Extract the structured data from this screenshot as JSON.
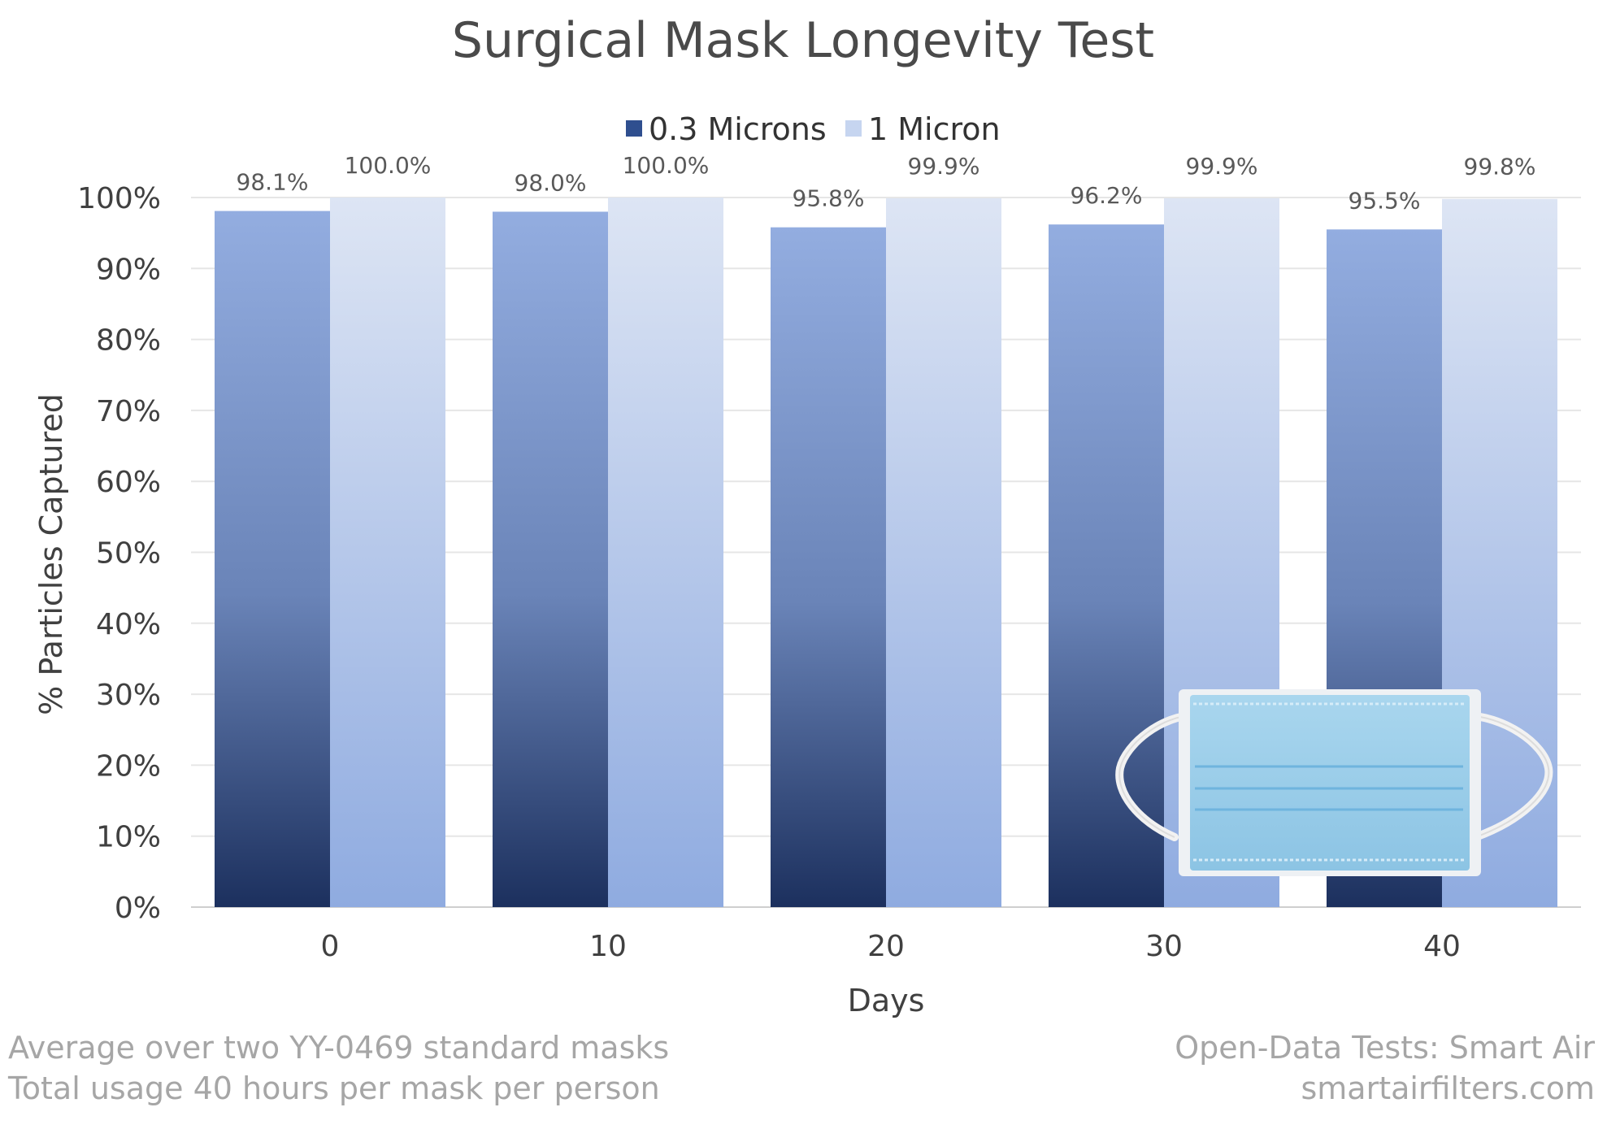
{
  "chart_data": {
    "type": "bar",
    "title": "Surgical Mask Longevity Test",
    "xlabel": "Days",
    "ylabel": "% Particles Captured",
    "categories": [
      "0",
      "10",
      "20",
      "30",
      "40"
    ],
    "series": [
      {
        "name": "0.3 Microns",
        "values": [
          98.1,
          98.0,
          95.8,
          96.2,
          95.5
        ],
        "labels": [
          "98.1%",
          "98.0%",
          "95.8%",
          "96.2%",
          "95.5%"
        ]
      },
      {
        "name": "1 Micron",
        "values": [
          100.0,
          100.0,
          99.9,
          99.9,
          99.8
        ],
        "labels": [
          "100.0%",
          "100.0%",
          "99.9%",
          "99.9%",
          "99.8%"
        ]
      }
    ],
    "ylim": [
      0,
      100
    ],
    "yticks": [
      0,
      10,
      20,
      30,
      40,
      50,
      60,
      70,
      80,
      90,
      100
    ],
    "ytick_labels": [
      "0%",
      "10%",
      "20%",
      "30%",
      "40%",
      "50%",
      "60%",
      "70%",
      "80%",
      "90%",
      "100%"
    ],
    "grid": true,
    "legend_position": "top-center",
    "colors": {
      "series_0_top": "#93ade0",
      "series_0_bottom": "#1c305e",
      "series_1_top": "#dde5f4",
      "series_1_bottom": "#8fabe0",
      "legend_0": "#2f4f8f",
      "legend_1": "#c6d5f0"
    }
  },
  "footer": {
    "left_line1": "Average over two YY-0469 standard masks",
    "left_line2": "Total usage 40 hours per mask per person",
    "right_line1": "Open-Data Tests: Smart Air",
    "right_line2": "smartairfilters.com"
  },
  "image": {
    "icon": "surgical-mask-icon"
  }
}
